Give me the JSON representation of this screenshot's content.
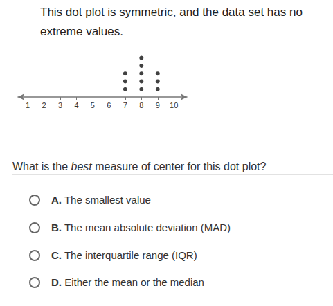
{
  "intro": "This dot plot is symmetric, and the data set has no extreme values.",
  "chart_data": {
    "type": "dot",
    "x": [
      7,
      8,
      9
    ],
    "counts": [
      3,
      5,
      3
    ],
    "xlim": [
      0.4,
      10.8
    ],
    "xticks": [
      1,
      2,
      3,
      4,
      5,
      6,
      7,
      8,
      9,
      10
    ],
    "ylim": [
      0,
      5.5
    ],
    "tick_labels": "x",
    "color": "#111111",
    "grid": false
  },
  "question": {
    "before": "What is the ",
    "emphasis": "best",
    "after": " measure of center for this dot plot?"
  },
  "options": [
    {
      "letter": "A.",
      "text": "The smallest value"
    },
    {
      "letter": "B.",
      "text": "The mean absolute deviation (MAD)"
    },
    {
      "letter": "C.",
      "text": "The interquartile range (IQR)"
    },
    {
      "letter": "D.",
      "text": "Either the mean or the median"
    }
  ]
}
